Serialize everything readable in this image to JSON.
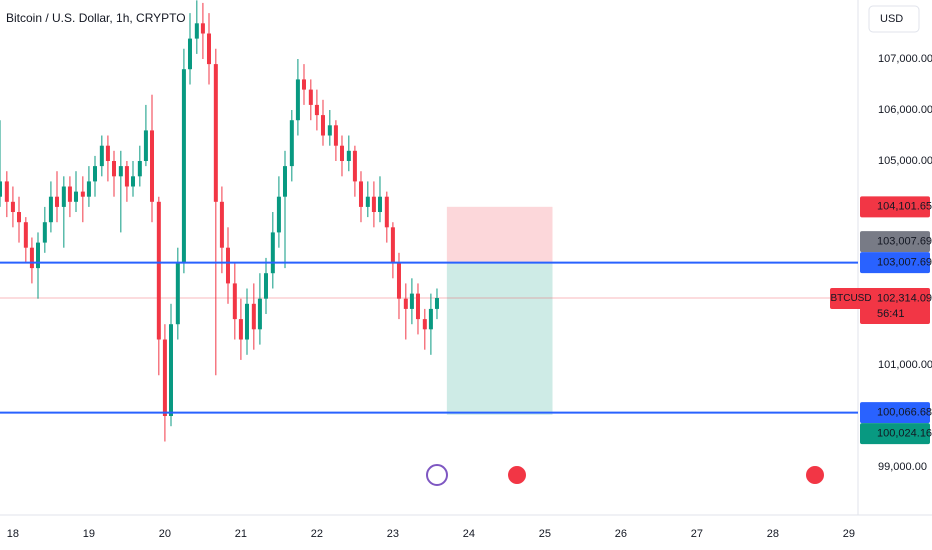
{
  "chart_data": {
    "type": "candlestick",
    "title": "Bitcoin / U.S. Dollar, 1h, CRYPTO",
    "currency": "USD",
    "up_color": "#089981",
    "down_color": "#f23645",
    "x": [
      17.83,
      17.92,
      18.0,
      18.08,
      18.17,
      18.25,
      18.33,
      18.42,
      18.5,
      18.58,
      18.67,
      18.75,
      18.83,
      18.92,
      19.0,
      19.08,
      19.17,
      19.25,
      19.33,
      19.42,
      19.5,
      19.58,
      19.67,
      19.75,
      19.83,
      19.92,
      20.0,
      20.08,
      20.17,
      20.25,
      20.33,
      20.42,
      20.5,
      20.58,
      20.67,
      20.75,
      20.83,
      20.92,
      21.0,
      21.08,
      21.17,
      21.25,
      21.33,
      21.42,
      21.5,
      21.58,
      21.67,
      21.75,
      21.83,
      21.92,
      22.0,
      22.08,
      22.17,
      22.25,
      22.33,
      22.42,
      22.5,
      22.58,
      22.67,
      22.75,
      22.83,
      22.92,
      23.0,
      23.08,
      23.17,
      23.25,
      23.33,
      23.42,
      23.5,
      23.58
    ],
    "open": [
      104300,
      104600,
      104200,
      104000,
      103800,
      103300,
      102900,
      103400,
      103800,
      104300,
      104100,
      104500,
      104200,
      104400,
      104300,
      104600,
      104900,
      105300,
      105000,
      104700,
      104900,
      104500,
      104700,
      105000,
      105600,
      104200,
      101500,
      100000,
      101800,
      103000,
      106800,
      107400,
      107700,
      107500,
      106900,
      104200,
      103300,
      102600,
      101900,
      101500,
      102200,
      101700,
      102300,
      102800,
      103600,
      104300,
      104900,
      105800,
      106600,
      106400,
      106100,
      105900,
      105500,
      105700,
      105300,
      105000,
      105200,
      104600,
      104100,
      104300,
      104000,
      104300,
      103700,
      103000,
      102300,
      102100,
      102400,
      101900,
      101700,
      102100
    ],
    "high": [
      105800,
      104800,
      104500,
      104300,
      103900,
      103500,
      103600,
      104100,
      104600,
      104800,
      104700,
      104700,
      104800,
      104700,
      104900,
      105100,
      105500,
      105500,
      105200,
      105200,
      105000,
      105000,
      105300,
      106100,
      106300,
      104300,
      101800,
      102200,
      103300,
      107200,
      107900,
      108150,
      108100,
      107900,
      107200,
      104500,
      103700,
      103000,
      102300,
      102500,
      102600,
      102800,
      103100,
      104000,
      104700,
      105200,
      106000,
      107000,
      106900,
      106600,
      106400,
      106200,
      106000,
      105800,
      105500,
      105500,
      105300,
      104800,
      104600,
      104600,
      104700,
      104400,
      103800,
      103200,
      102600,
      102700,
      102600,
      102100,
      102400,
      102500
    ],
    "low": [
      104100,
      103900,
      103700,
      103400,
      103000,
      102600,
      102300,
      103200,
      103600,
      103800,
      103300,
      103900,
      104000,
      103800,
      104100,
      104300,
      104700,
      104600,
      104300,
      103600,
      104200,
      104300,
      104500,
      104900,
      103800,
      100800,
      99500,
      99800,
      101500,
      102800,
      106500,
      107100,
      107000,
      106500,
      100800,
      102800,
      102200,
      101500,
      101100,
      101200,
      101300,
      101400,
      102000,
      102500,
      103300,
      102900,
      104600,
      105500,
      106100,
      105800,
      105600,
      105300,
      105300,
      105000,
      104700,
      104800,
      104300,
      103800,
      103900,
      103700,
      103800,
      103400,
      102700,
      101900,
      101500,
      101800,
      101600,
      101300,
      101200,
      101900
    ],
    "close": [
      104600,
      104200,
      104000,
      103800,
      103300,
      102900,
      103400,
      103800,
      104300,
      104100,
      104500,
      104200,
      104400,
      104300,
      104600,
      104900,
      105300,
      105000,
      104700,
      104900,
      104500,
      104700,
      105000,
      105600,
      104200,
      101500,
      100000,
      101800,
      103000,
      106800,
      107400,
      107700,
      107500,
      106900,
      104200,
      103300,
      102600,
      101900,
      101500,
      102200,
      101700,
      102300,
      102800,
      103600,
      104300,
      104900,
      105800,
      106600,
      106400,
      106100,
      105900,
      105500,
      105700,
      105300,
      105000,
      105200,
      104600,
      104100,
      104300,
      104000,
      104300,
      103700,
      103000,
      102300,
      102100,
      102400,
      101900,
      101700,
      102100,
      102314.09
    ],
    "xlim": [
      17.83,
      29.12
    ],
    "xticks": [
      18,
      19,
      20,
      21,
      22,
      23,
      24,
      25,
      26,
      27,
      28,
      29
    ],
    "ylim": [
      98157,
      108157
    ],
    "yticks": [
      {
        "value": 99000,
        "label": "99,000.00"
      },
      {
        "value": 101000,
        "label": "101,000.00"
      },
      {
        "value": 105000,
        "label": "105,000.00"
      },
      {
        "value": 106000,
        "label": "106,000.00"
      },
      {
        "value": 107000,
        "label": "107,000.00"
      }
    ],
    "horizontal_lines": [
      {
        "value": 103007.69,
        "color": "#2962ff"
      },
      {
        "value": 100066.68,
        "color": "#2962ff"
      }
    ],
    "position": {
      "x": [
        23.71,
        25.1
      ],
      "entry": 103007.69,
      "stop": 104101.65,
      "target": 100024.16
    },
    "price_tags": [
      {
        "value": 104101.65,
        "label": "104,101.65",
        "color": "#f23645"
      },
      {
        "value": 103007.69,
        "label": "103,007.69",
        "color": "#787b86"
      },
      {
        "value": 103007.69,
        "label": "103,007.69",
        "color": "#2962ff"
      },
      {
        "value": 102314.09,
        "label": "102,314.09",
        "symbol": "BTCUSD",
        "countdown": "56:41",
        "color": "#f23645"
      },
      {
        "value": 100066.68,
        "label": "100,066.68",
        "color": "#2962ff"
      },
      {
        "value": 100024.16,
        "label": "100,024.16",
        "color": "#089981"
      }
    ]
  }
}
